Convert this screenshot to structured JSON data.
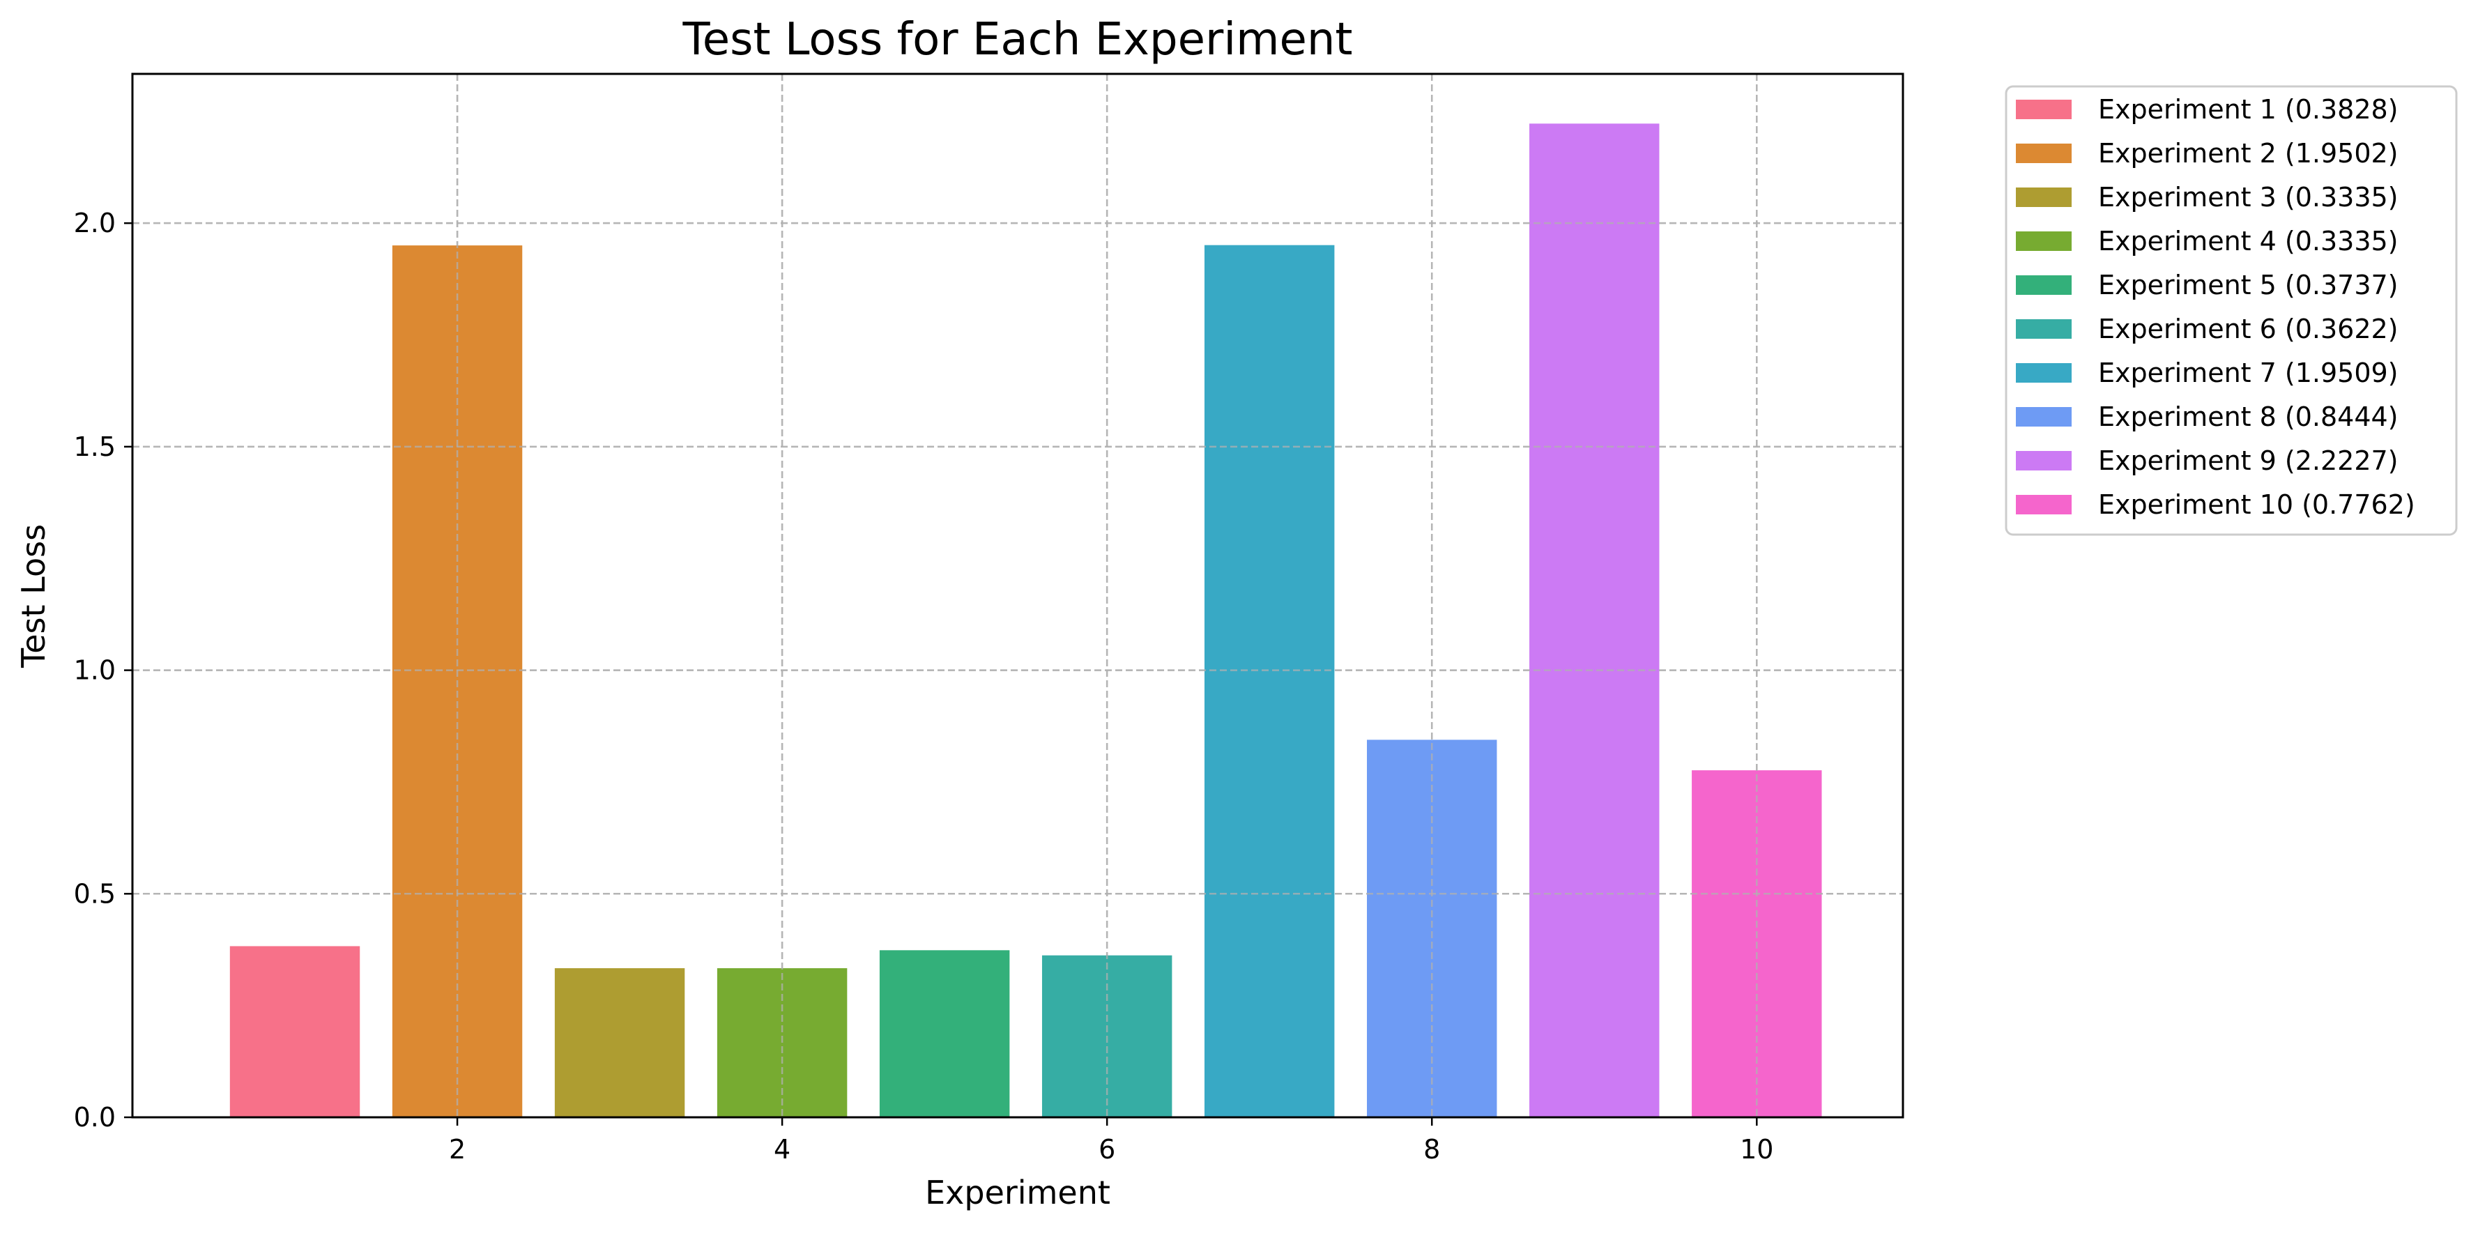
{
  "chart_data": {
    "type": "bar",
    "title": "Test Loss for Each Experiment",
    "xlabel": "Experiment",
    "ylabel": "Test Loss",
    "x": [
      1,
      2,
      3,
      4,
      5,
      6,
      7,
      8,
      9,
      10
    ],
    "values": [
      0.3828,
      1.9502,
      0.3335,
      0.3335,
      0.3737,
      0.3622,
      1.9509,
      0.8444,
      2.2227,
      0.7762
    ],
    "colors": [
      "#f77189",
      "#dc8932",
      "#ae9d31",
      "#77ab31",
      "#33b07a",
      "#36ada4",
      "#38a9c5",
      "#6e9bf4",
      "#cc7af4",
      "#f565cc"
    ],
    "xlim": [
      0.0,
      10.9
    ],
    "ylim": [
      0,
      2.3339
    ],
    "xticks": [
      2,
      4,
      6,
      8,
      10
    ],
    "yticks": [
      0.0,
      0.5,
      1.0,
      1.5,
      2.0
    ],
    "ytick_labels": [
      "0.0",
      "0.5",
      "1.0",
      "1.5",
      "2.0"
    ],
    "grid": true,
    "legend": {
      "placement": "outside-top-right",
      "entries": [
        "Experiment 1 (0.3828)",
        "Experiment 2 (1.9502)",
        "Experiment 3 (0.3335)",
        "Experiment 4 (0.3335)",
        "Experiment 5 (0.3737)",
        "Experiment 6 (0.3622)",
        "Experiment 7 (1.9509)",
        "Experiment 8 (0.8444)",
        "Experiment 9 (2.2227)",
        "Experiment 10 (0.7762)"
      ]
    }
  }
}
